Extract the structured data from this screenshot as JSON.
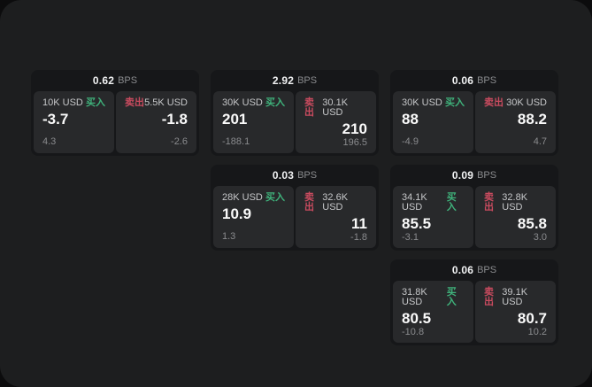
{
  "labels": {
    "bps_unit": "BPS",
    "buy": "买入",
    "sell": "卖出"
  },
  "colors": {
    "buy_accent": "#3fb27b",
    "sell_accent": "#c94b5f",
    "panel_bg": "#1d1e1f",
    "card_bg": "#161719",
    "tile_bg": "#28292b"
  },
  "cards": [
    {
      "bps": "0.62",
      "buy": {
        "size": "10K USD",
        "price": "-3.7",
        "delta": "4.3"
      },
      "sell": {
        "size": "5.5K USD",
        "price": "-1.8",
        "delta": "-2.6"
      }
    },
    {
      "bps": "2.92",
      "buy": {
        "size": "30K USD",
        "price": "201",
        "delta": "-188.1"
      },
      "sell": {
        "size": "30.1K USD",
        "price": "210",
        "delta": "196.5"
      }
    },
    {
      "bps": "0.06",
      "buy": {
        "size": "30K USD",
        "price": "88",
        "delta": "-4.9"
      },
      "sell": {
        "size": "30K USD",
        "price": "88.2",
        "delta": "4.7"
      }
    },
    {
      "bps": "0.03",
      "buy": {
        "size": "28K USD",
        "price": "10.9",
        "delta": "1.3"
      },
      "sell": {
        "size": "32.6K USD",
        "price": "11",
        "delta": "-1.8"
      }
    },
    {
      "bps": "0.09",
      "buy": {
        "size": "34.1K USD",
        "price": "85.5",
        "delta": "-3.1"
      },
      "sell": {
        "size": "32.8K USD",
        "price": "85.8",
        "delta": "3.0"
      }
    },
    {
      "bps": "0.06",
      "buy": {
        "size": "31.8K USD",
        "price": "80.5",
        "delta": "-10.8"
      },
      "sell": {
        "size": "39.1K USD",
        "price": "80.7",
        "delta": "10.2"
      }
    }
  ]
}
